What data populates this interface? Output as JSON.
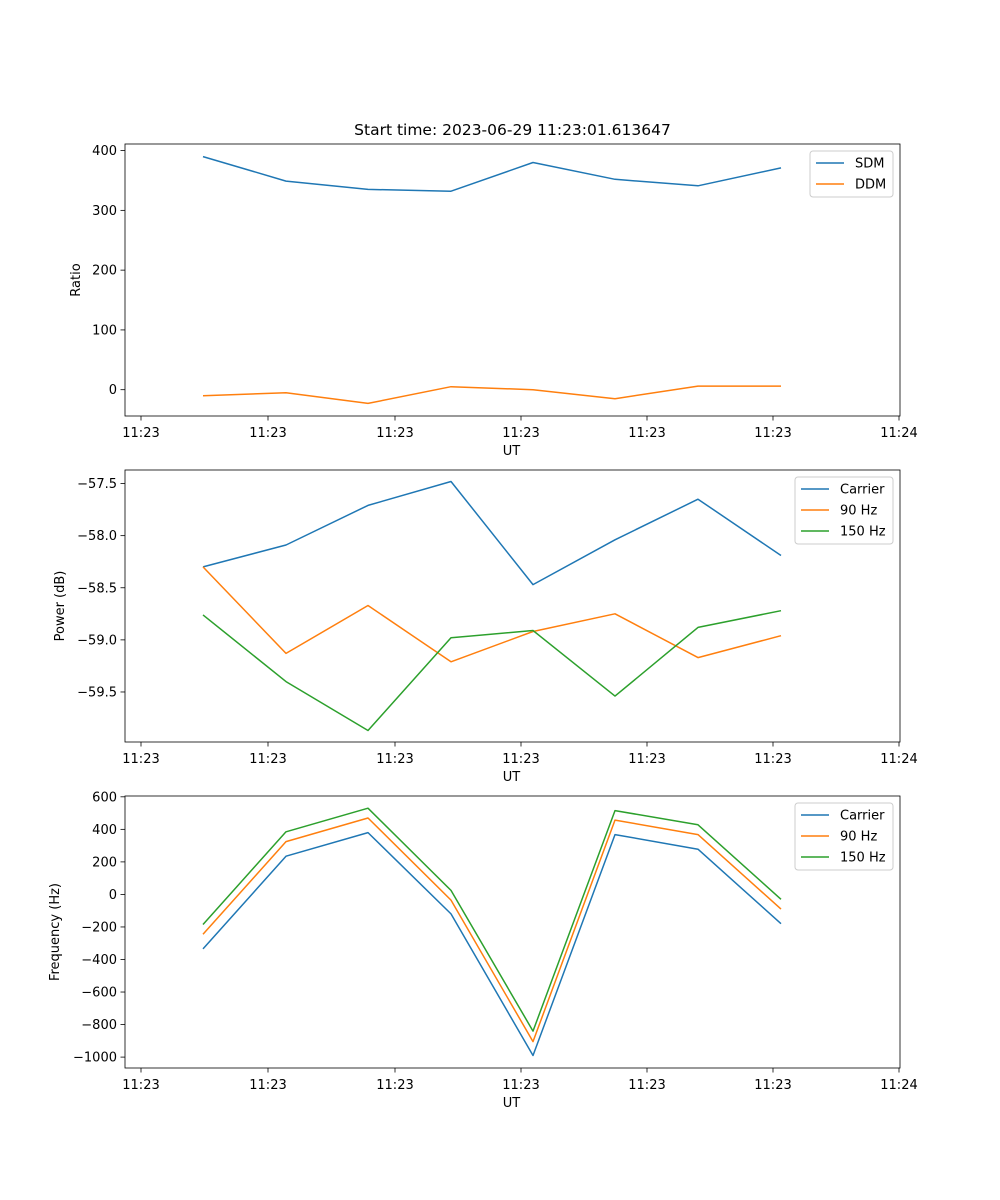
{
  "chart_data": [
    {
      "type": "line",
      "title": "Start time: 2023-06-29 11:23:01.613647",
      "xlabel": "UT",
      "ylabel": "Ratio",
      "x_tick_labels": [
        "11:23",
        "11:23",
        "11:23",
        "11:23",
        "11:23",
        "11:23",
        "11:24"
      ],
      "y_ticks": [
        0,
        100,
        200,
        300,
        400
      ],
      "ylim": [
        -44,
        411
      ],
      "grid": false,
      "legend_position": "top-right",
      "colors": {
        "SDM": "#1f77b4",
        "DDM": "#ff7f0e"
      },
      "series": [
        {
          "name": "SDM",
          "values": [
            390,
            349,
            335,
            332,
            380,
            352,
            341,
            371
          ]
        },
        {
          "name": "DDM",
          "values": [
            -10,
            -5,
            -23,
            5,
            0,
            -15,
            6,
            6
          ]
        }
      ]
    },
    {
      "type": "line",
      "title": "",
      "xlabel": "UT",
      "ylabel": "Power (dB)",
      "x_tick_labels": [
        "11:23",
        "11:23",
        "11:23",
        "11:23",
        "11:23",
        "11:23",
        "11:24"
      ],
      "y_ticks": [
        -59.5,
        -59.0,
        -58.5,
        -58.0,
        -57.5
      ],
      "y_tick_labels": [
        "−59.5",
        "−59.0",
        "−58.5",
        "−58.0",
        "−57.5"
      ],
      "ylim": [
        -59.98,
        -57.37
      ],
      "grid": false,
      "legend_position": "top-right",
      "colors": {
        "Carrier": "#1f77b4",
        "90 Hz": "#ff7f0e",
        "150 Hz": "#2ca02c"
      },
      "series": [
        {
          "name": "Carrier",
          "values": [
            -58.3,
            -58.09,
            -57.71,
            -57.48,
            -58.47,
            -58.04,
            -57.65,
            -58.19
          ]
        },
        {
          "name": "90 Hz",
          "values": [
            -58.3,
            -59.13,
            -58.67,
            -59.21,
            -58.92,
            -58.75,
            -59.17,
            -58.96
          ]
        },
        {
          "name": "150 Hz",
          "values": [
            -58.76,
            -59.4,
            -59.87,
            -58.98,
            -58.91,
            -59.54,
            -58.88,
            -58.72
          ]
        }
      ]
    },
    {
      "type": "line",
      "title": "",
      "xlabel": "UT",
      "ylabel": "Frequency (Hz)",
      "x_tick_labels": [
        "11:23",
        "11:23",
        "11:23",
        "11:23",
        "11:23",
        "11:23",
        "11:24"
      ],
      "y_ticks": [
        -1000,
        -800,
        -600,
        -400,
        -200,
        0,
        200,
        400,
        600
      ],
      "y_tick_labels": [
        "−1000",
        "−800",
        "−600",
        "−400",
        "−200",
        "0",
        "200",
        "400",
        "600"
      ],
      "ylim": [
        -1067,
        605
      ],
      "grid": false,
      "legend_position": "top-right",
      "colors": {
        "Carrier": "#1f77b4",
        "90 Hz": "#ff7f0e",
        "150 Hz": "#2ca02c"
      },
      "series": [
        {
          "name": "Carrier",
          "values": [
            -335,
            235,
            380,
            -120,
            -990,
            368,
            278,
            -180
          ]
        },
        {
          "name": "90 Hz",
          "values": [
            -245,
            325,
            470,
            -35,
            -905,
            457,
            368,
            -90
          ]
        },
        {
          "name": "150 Hz",
          "values": [
            -185,
            385,
            530,
            25,
            -840,
            515,
            428,
            -30
          ]
        }
      ]
    }
  ]
}
